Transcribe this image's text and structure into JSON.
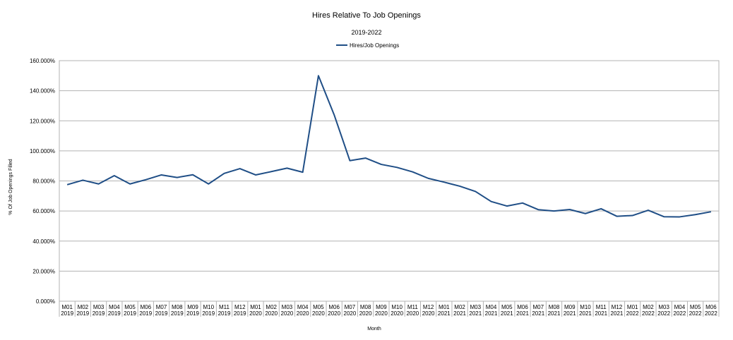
{
  "chart_data": {
    "type": "line",
    "title": "Hires Relative To Job Openings",
    "subtitle": "2019-2022",
    "xlabel": "Month",
    "ylabel": "% Of Job Openings Filled",
    "ylim": [
      0,
      160
    ],
    "y_ticks": [
      0,
      20,
      40,
      60,
      80,
      100,
      120,
      140,
      160
    ],
    "y_tick_labels": [
      "0.000%",
      "20.000%",
      "40.000%",
      "60.000%",
      "80.000%",
      "100.000%",
      "120.000%",
      "140.000%",
      "160.000%"
    ],
    "grid": "horizontal",
    "legend_position": "top-center",
    "categories": [
      [
        "M01",
        "2019"
      ],
      [
        "M02",
        "2019"
      ],
      [
        "M03",
        "2019"
      ],
      [
        "M04",
        "2019"
      ],
      [
        "M05",
        "2019"
      ],
      [
        "M06",
        "2019"
      ],
      [
        "M07",
        "2019"
      ],
      [
        "M08",
        "2019"
      ],
      [
        "M09",
        "2019"
      ],
      [
        "M10",
        "2019"
      ],
      [
        "M11",
        "2019"
      ],
      [
        "M12",
        "2019"
      ],
      [
        "M01",
        "2020"
      ],
      [
        "M02",
        "2020"
      ],
      [
        "M03",
        "2020"
      ],
      [
        "M04",
        "2020"
      ],
      [
        "M05",
        "2020"
      ],
      [
        "M06",
        "2020"
      ],
      [
        "M07",
        "2020"
      ],
      [
        "M08",
        "2020"
      ],
      [
        "M09",
        "2020"
      ],
      [
        "M10",
        "2020"
      ],
      [
        "M11",
        "2020"
      ],
      [
        "M12",
        "2020"
      ],
      [
        "M01",
        "2021"
      ],
      [
        "M02",
        "2021"
      ],
      [
        "M03",
        "2021"
      ],
      [
        "M04",
        "2021"
      ],
      [
        "M05",
        "2021"
      ],
      [
        "M06",
        "2021"
      ],
      [
        "M07",
        "2021"
      ],
      [
        "M08",
        "2021"
      ],
      [
        "M09",
        "2021"
      ],
      [
        "M10",
        "2021"
      ],
      [
        "M11",
        "2021"
      ],
      [
        "M12",
        "2021"
      ],
      [
        "M01",
        "2022"
      ],
      [
        "M02",
        "2022"
      ],
      [
        "M03",
        "2022"
      ],
      [
        "M04",
        "2022"
      ],
      [
        "M05",
        "2022"
      ],
      [
        "M06",
        "2022"
      ]
    ],
    "series": [
      {
        "name": "Hires/Job Openings",
        "color": "#1f4e86",
        "values": [
          77.5,
          80.5,
          78.0,
          83.5,
          78.0,
          80.8,
          84.0,
          82.3,
          84.1,
          78.0,
          85.0,
          88.2,
          84.0,
          86.2,
          88.5,
          85.8,
          150.0,
          124.0,
          93.5,
          95.2,
          91.0,
          89.0,
          86.0,
          81.7,
          79.2,
          76.5,
          73.0,
          66.3,
          63.3,
          65.3,
          60.9,
          60.0,
          61.0,
          58.3,
          61.5,
          56.5,
          57.0,
          60.5,
          56.2,
          56.1,
          57.6,
          59.5
        ]
      }
    ]
  }
}
